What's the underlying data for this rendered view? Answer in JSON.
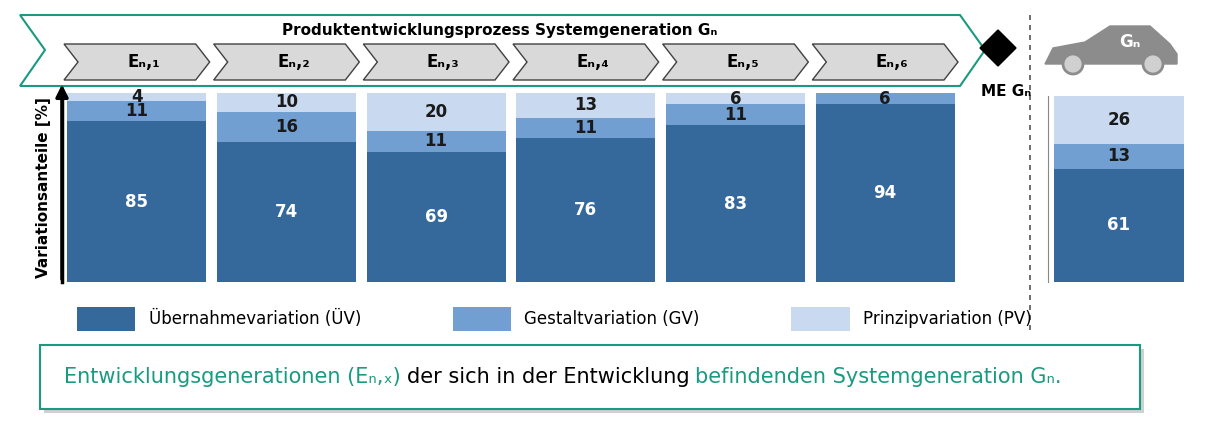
{
  "process": {
    "title": "Produktentwicklungsprozess Systemgeneration Gₙ",
    "milestone": "ME Gₙ"
  },
  "chart_data": [
    {
      "type": "bar",
      "stacked": true,
      "categories": [
        "Eₙ,₁",
        "Eₙ,₂",
        "Eₙ,₃",
        "Eₙ,₄",
        "Eₙ,₅",
        "Eₙ,₆"
      ],
      "ylabel": "Variationsanteile [%]",
      "ylim": [
        0,
        100
      ],
      "yticks": [],
      "tick_labels": false,
      "data_labels": true,
      "legend": "upper left",
      "series": [
        {
          "name": "Übernahmevariation (ÜV)",
          "color": "#35689b",
          "values": [
            85,
            74,
            69,
            76,
            83,
            94
          ]
        },
        {
          "name": "Gestaltvariation (GV)",
          "color": "#729fd2",
          "values": [
            11,
            16,
            11,
            11,
            11,
            6
          ]
        },
        {
          "name": "Prinzipvariation (PV)",
          "color": "#c9daf0",
          "values": [
            4,
            10,
            20,
            13,
            6,
            0
          ],
          "value_labels": [
            "4",
            "10",
            "20",
            "13",
            "6",
            null
          ]
        }
      ]
    },
    {
      "type": "bar",
      "stacked": true,
      "categories": [
        "Gₙ"
      ],
      "ylim": [
        0,
        100
      ],
      "yticks": [],
      "tick_labels": false,
      "data_labels": true,
      "series": [
        {
          "color": "#35689b",
          "values": [
            61
          ]
        },
        {
          "color": "#729fd2",
          "values": [
            13
          ]
        },
        {
          "color": "#c9daf0",
          "values": [
            26
          ]
        }
      ]
    }
  ],
  "caption": [
    "Entwicklungsgenerationen (Eₙ,ₓ)",
    "der sich in der Entwicklung",
    "befindenden Systemgeneration Gₙ."
  ]
}
